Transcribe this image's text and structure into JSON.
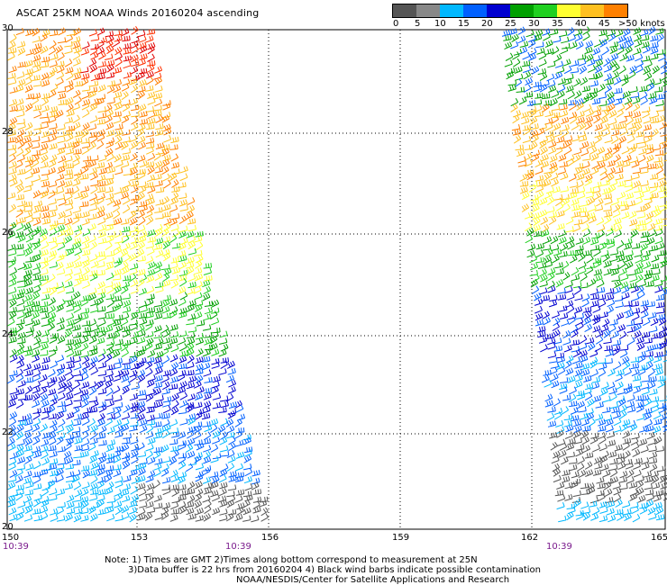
{
  "title": "ASCAT 25KM NOAA Winds 20160204 ascending",
  "legend": {
    "colors": [
      "#555555",
      "#888888",
      "#00b8ff",
      "#0060ff",
      "#0000d0",
      "#00a000",
      "#20d020",
      "#ffff30",
      "#ffc020",
      "#ff8000",
      "#ff3000",
      "#e00000",
      "#904020",
      "#b02060",
      "#c000c0",
      "#6000a0",
      "#300060"
    ],
    "labels": [
      "0",
      "5",
      "10",
      "15",
      "20",
      "25",
      "30",
      "35",
      "40",
      "45",
      ">50 knots"
    ]
  },
  "y_ticks": [
    "30",
    "28",
    "26",
    "24",
    "22",
    "20"
  ],
  "x_ticks": [
    "150",
    "153",
    "156",
    "159",
    "162",
    "165"
  ],
  "pass_times": [
    "10:39",
    "10:39",
    "10:39"
  ],
  "notes": [
    "Note: 1) Times are GMT 2)Times along bottom correspond to measurement at 25N",
    "3)Data buffer is 22 hrs from 20160204 4) Black wind barbs indicate possible contamination",
    "NOAA/NESDIS/Center for Satellite Applications and Research"
  ]
}
